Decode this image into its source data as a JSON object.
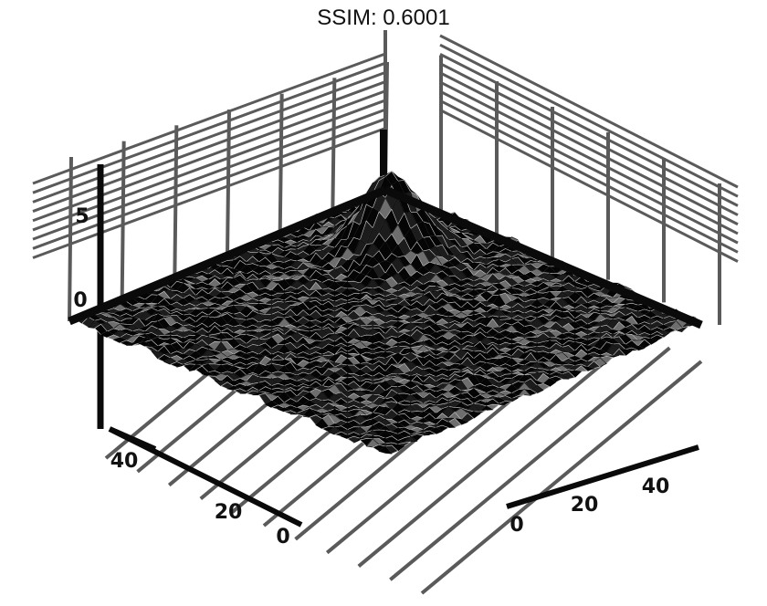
{
  "chart_data": {
    "type": "surface",
    "title": "SSIM: 0.6001",
    "xlabel": "",
    "ylabel": "",
    "zlabel": "",
    "grid": true,
    "colors": {
      "surface_fill": "#1c1c1c",
      "surface_dark": "#050505",
      "surface_light": "#cfcfcf",
      "axis": "#0a0a0a",
      "grid": "#5a5a5a",
      "background": "#ffffff"
    },
    "z_axis_ticks": [
      "5",
      "0"
    ],
    "x_axis_ticks": [
      "40",
      "20",
      "0"
    ],
    "y_axis_ticks": [
      "40",
      "20",
      "0"
    ],
    "grid_size": [
      50,
      50
    ],
    "peak": {
      "x": 12,
      "y": 38,
      "value_relative": 1.0
    }
  }
}
